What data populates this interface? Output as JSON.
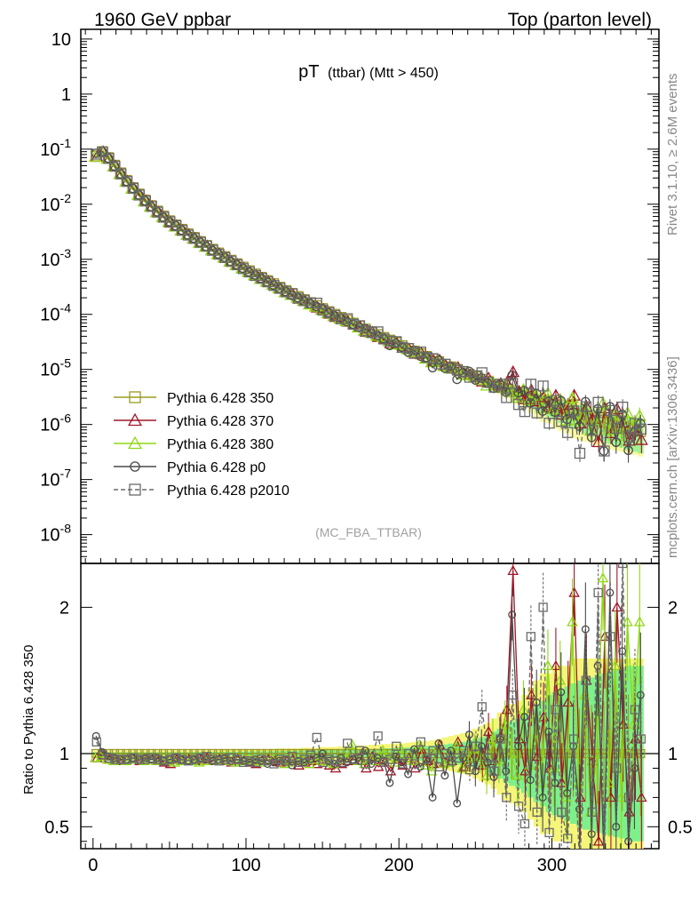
{
  "header": {
    "left": "1960 GeV ppbar",
    "right": "Top (parton level)"
  },
  "plot_title": {
    "main": "pT",
    "sub": "(ttbar) (Mtt > 450)"
  },
  "side_labels": {
    "rivet": "Rivet 3.1.10, ≥ 2.6M events",
    "mcplots": "mcplots.cern.ch [arXiv:1306.3436]"
  },
  "analysis_tag": "(MC_FBA_TTBAR)",
  "ratio_ylabel": "Ratio to Pythia 6.428 350",
  "colors": {
    "p350": "#9a9a22",
    "p370": "#a01628",
    "p380": "#8fd815",
    "p0": "#4a4a4a",
    "p2010": "#6a6a6a",
    "band_yellow": "#f5f57a",
    "band_green": "#7ef08a"
  },
  "chart_data": {
    "type": "line",
    "x_axis": {
      "range": [
        -8,
        370
      ],
      "ticks": [
        0,
        100,
        200,
        300
      ]
    },
    "main_panel": {
      "y_scale": "log",
      "y_range": [
        3e-09,
        15
      ],
      "y_ticks": [
        "10",
        "1",
        "10^-1",
        "10^-2",
        "10^-3",
        "10^-4",
        "10^-5",
        "10^-6",
        "10^-7",
        "10^-8"
      ]
    },
    "ratio_panel": {
      "y_range": [
        0.35,
        2.3
      ],
      "y_ticks": [
        "0.5",
        "1",
        "2"
      ]
    },
    "legend": [
      {
        "name": "Pythia 6.428 350",
        "marker": "square",
        "line": "solid",
        "color_key": "p350"
      },
      {
        "name": "Pythia 6.428 370",
        "marker": "triangle",
        "line": "solid",
        "color_key": "p370"
      },
      {
        "name": "Pythia 6.428 380",
        "marker": "triangle",
        "line": "solid",
        "color_key": "p380"
      },
      {
        "name": "Pythia 6.428 p0",
        "marker": "circle",
        "line": "solid",
        "color_key": "p0"
      },
      {
        "name": "Pythia 6.428 p2010",
        "marker": "square",
        "line": "dashed",
        "color_key": "p2010"
      }
    ],
    "reference": {
      "name": "Pythia 6.428 350",
      "bin_width": 4,
      "x": [
        2,
        6,
        10,
        14,
        18,
        22,
        26,
        30,
        34,
        38,
        42,
        46,
        50,
        54,
        58,
        62,
        66,
        70,
        74,
        78,
        82,
        86,
        90,
        94,
        98,
        102,
        106,
        110,
        114,
        118,
        122,
        126,
        130,
        134,
        138,
        142,
        146,
        150,
        154,
        158,
        162,
        166,
        170,
        174,
        178,
        182,
        186,
        190,
        194,
        198,
        202,
        206,
        210,
        214,
        218,
        222,
        226,
        230,
        234,
        238,
        242,
        246,
        250,
        254,
        258,
        262,
        266,
        270,
        274,
        278,
        282,
        286,
        290,
        294,
        298,
        302,
        306,
        310,
        314,
        318,
        322,
        326,
        330,
        334,
        338,
        342,
        346,
        350,
        354,
        358
      ],
      "y": [
        0.075,
        0.09,
        0.07,
        0.051,
        0.037,
        0.027,
        0.02,
        0.0153,
        0.0119,
        0.0094,
        0.0075,
        0.0061,
        0.005,
        0.0042,
        0.0035,
        0.0029,
        0.0025,
        0.0021,
        0.00178,
        0.00152,
        0.0013,
        0.00112,
        0.00096,
        0.00083,
        0.00072,
        0.00062,
        0.00054,
        0.00047,
        0.00041,
        0.00036,
        0.00031,
        0.00027,
        0.00024,
        0.00021,
        0.000185,
        0.000163,
        0.000144,
        0.000127,
        0.000112,
        0.0001,
        8.8e-05,
        7.8e-05,
        6.9e-05,
        6.1e-05,
        5.4e-05,
        4.8e-05,
        4.3e-05,
        3.8e-05,
        3.4e-05,
        3.05e-05,
        2.7e-05,
        2.4e-05,
        2.15e-05,
        1.92e-05,
        1.72e-05,
        1.54e-05,
        1.38e-05,
        1.24e-05,
        1.11e-05,
        1e-05,
        9e-06,
        8.1e-06,
        7.3e-06,
        6.6e-06,
        6e-06,
        5.4e-06,
        4.9e-06,
        4.4e-06,
        4e-06,
        3.6e-06,
        3.3e-06,
        3e-06,
        2.7e-06,
        2.5e-06,
        2.3e-06,
        2.1e-06,
        1.9e-06,
        1.7e-06,
        1.6e-06,
        1.5e-06,
        1.4e-06,
        1.3e-06,
        1.2e-06,
        1.1e-06,
        1e-06,
        9.5e-07,
        9e-07,
        8.5e-07,
        8e-07,
        7.5e-07
      ]
    },
    "bands": [
      {
        "name": "yellow",
        "color_key": "band_yellow",
        "half_width": [
          0.02,
          0.02,
          0.02,
          0.02,
          0.02,
          0.02,
          0.02,
          0.02,
          0.02,
          0.02,
          0.02,
          0.02,
          0.02,
          0.02,
          0.02,
          0.02,
          0.02,
          0.02,
          0.02,
          0.02,
          0.025,
          0.025,
          0.025,
          0.025,
          0.025,
          0.03,
          0.03,
          0.03,
          0.03,
          0.03,
          0.035,
          0.035,
          0.035,
          0.035,
          0.04,
          0.04,
          0.04,
          0.045,
          0.045,
          0.045,
          0.05,
          0.05,
          0.05,
          0.055,
          0.055,
          0.06,
          0.06,
          0.065,
          0.065,
          0.07,
          0.07,
          0.075,
          0.08,
          0.08,
          0.085,
          0.09,
          0.1,
          0.11,
          0.12,
          0.13,
          0.14,
          0.15,
          0.17,
          0.19,
          0.21,
          0.24,
          0.28,
          0.32,
          0.34,
          0.36,
          0.4,
          0.45,
          0.5,
          0.55,
          0.55,
          0.6,
          0.6,
          0.6,
          0.65,
          0.65,
          0.65,
          0.65,
          0.65,
          0.65,
          0.65,
          0.65,
          0.65,
          0.65,
          0.65,
          0.65
        ]
      },
      {
        "name": "green",
        "color_key": "band_green",
        "half_width": [
          0.01,
          0.01,
          0.01,
          0.01,
          0.01,
          0.01,
          0.01,
          0.01,
          0.01,
          0.01,
          0.01,
          0.01,
          0.01,
          0.01,
          0.01,
          0.01,
          0.012,
          0.012,
          0.012,
          0.012,
          0.013,
          0.013,
          0.013,
          0.014,
          0.014,
          0.015,
          0.015,
          0.016,
          0.016,
          0.017,
          0.018,
          0.018,
          0.019,
          0.02,
          0.021,
          0.022,
          0.022,
          0.023,
          0.024,
          0.025,
          0.026,
          0.027,
          0.028,
          0.029,
          0.03,
          0.032,
          0.033,
          0.035,
          0.036,
          0.038,
          0.04,
          0.042,
          0.045,
          0.048,
          0.05,
          0.053,
          0.058,
          0.062,
          0.068,
          0.074,
          0.08,
          0.09,
          0.1,
          0.11,
          0.13,
          0.15,
          0.17,
          0.2,
          0.22,
          0.24,
          0.27,
          0.3,
          0.33,
          0.36,
          0.4,
          0.42,
          0.44,
          0.46,
          0.48,
          0.5,
          0.52,
          0.52,
          0.54,
          0.55,
          0.56,
          0.57,
          0.58,
          0.6,
          0.6,
          0.6
        ]
      }
    ],
    "series": [
      {
        "name": "Pythia 6.428 350",
        "color_key": "p350",
        "marker": "square",
        "dash": false,
        "x_offset": 0,
        "ratio": [
          1,
          1,
          1,
          1,
          1,
          1,
          1,
          1,
          1,
          1,
          1,
          1,
          1,
          1,
          1,
          1,
          1,
          1,
          1,
          1,
          1,
          1,
          1,
          1,
          1,
          1,
          1,
          1,
          1,
          1,
          1,
          1,
          1,
          1,
          1,
          1,
          1,
          1,
          1,
          1,
          1,
          1,
          1,
          1,
          1,
          1,
          1,
          1,
          1,
          1,
          1,
          1,
          1,
          1,
          1,
          1,
          1,
          1,
          1,
          1,
          1,
          1,
          1,
          1,
          1,
          1,
          1,
          1,
          1,
          1,
          1,
          1,
          1,
          1,
          1,
          1,
          1,
          1,
          1,
          1,
          1,
          1,
          1,
          1,
          1,
          1,
          1,
          1,
          1,
          1
        ]
      },
      {
        "name": "Pythia 6.428 370",
        "color_key": "p370",
        "marker": "triangle",
        "dash": false,
        "x_offset": 0.6,
        "ratio": [
          0.97,
          0.99,
          0.96,
          0.96,
          0.95,
          0.96,
          0.96,
          0.95,
          0.96,
          0.96,
          0.95,
          0.94,
          0.93,
          0.96,
          0.95,
          0.96,
          0.95,
          0.96,
          0.97,
          0.95,
          0.96,
          0.95,
          0.94,
          0.96,
          0.95,
          0.94,
          0.93,
          0.95,
          0.96,
          0.95,
          0.94,
          0.95,
          0.96,
          0.92,
          0.94,
          0.95,
          0.93,
          0.96,
          0.92,
          0.9,
          0.93,
          0.95,
          0.96,
          0.97,
          0.9,
          0.98,
          0.91,
          0.94,
          0.88,
          0.96,
          0.92,
          0.97,
          0.9,
          1.03,
          0.95,
          0.93,
          1.06,
          0.94,
          0.95,
          1.08,
          0.91,
          0.97,
          1.0,
          0.92,
          1.15,
          0.95,
          1.12,
          1.3,
          2.25,
          1.1,
          0.88,
          1.4,
          0.98,
          1.25,
          0.9,
          1.6,
          0.8,
          1.35,
          2.1,
          0.7,
          1.5,
          0.95,
          0.4,
          1.8,
          0.7,
          2.0,
          1.2,
          0.6,
          1.1,
          0.7
        ]
      },
      {
        "name": "Pythia 6.428 380",
        "color_key": "p380",
        "marker": "triangle",
        "dash": false,
        "x_offset": -0.6,
        "ratio": [
          0.97,
          0.98,
          0.96,
          0.95,
          0.96,
          0.95,
          0.96,
          0.96,
          0.95,
          0.96,
          0.95,
          0.96,
          0.95,
          0.94,
          0.95,
          0.96,
          0.95,
          0.94,
          0.95,
          0.96,
          0.95,
          0.96,
          0.95,
          0.94,
          0.95,
          0.96,
          0.95,
          0.94,
          0.95,
          0.96,
          0.96,
          0.93,
          0.94,
          0.96,
          0.95,
          0.93,
          0.96,
          0.95,
          0.94,
          0.93,
          0.96,
          0.97,
          1.06,
          0.95,
          0.93,
          0.97,
          0.95,
          1.02,
          0.96,
          0.94,
          1.03,
          0.97,
          0.95,
          1.06,
          0.92,
          0.88,
          1.04,
          0.93,
          0.94,
          1.05,
          0.9,
          0.97,
          1.03,
          0.98,
          0.85,
          1.1,
          0.95,
          1.2,
          1.0,
          0.85,
          1.3,
          0.92,
          1.25,
          0.8,
          1.6,
          0.9,
          1.5,
          0.7,
          1.9,
          0.8,
          1.4,
          0.6,
          1.0,
          2.2,
          0.8,
          1.6,
          0.7,
          1.9,
          1.2,
          1.9
        ]
      },
      {
        "name": "Pythia 6.428 p0",
        "color_key": "p0",
        "marker": "circle",
        "dash": false,
        "x_offset": 0,
        "ratio": [
          1.12,
          1.01,
          0.98,
          0.97,
          0.96,
          0.96,
          0.97,
          0.96,
          0.97,
          0.96,
          0.97,
          0.95,
          0.96,
          0.97,
          0.96,
          0.95,
          0.96,
          0.97,
          0.96,
          0.95,
          0.96,
          0.97,
          0.95,
          0.96,
          0.95,
          0.94,
          0.96,
          0.95,
          0.93,
          0.94,
          0.95,
          0.96,
          0.92,
          0.95,
          0.94,
          0.96,
          0.97,
          1.0,
          0.95,
          0.93,
          0.97,
          0.94,
          0.96,
          0.95,
          1.02,
          0.93,
          0.97,
          0.95,
          0.8,
          0.98,
          0.94,
          0.86,
          1.03,
          0.91,
          0.96,
          0.7,
          1.07,
          0.85,
          1.02,
          0.66,
          0.97,
          1.13,
          0.88,
          1.05,
          0.94,
          0.84,
          1.1,
          0.88,
          1.95,
          1.05,
          1.25,
          0.82,
          1.35,
          0.7,
          1.15,
          0.8,
          1.42,
          0.73,
          1.05,
          0.62,
          1.85,
          0.45,
          1.6,
          0.3,
          2.1,
          0.5,
          1.7,
          0.4,
          0.9,
          1.4
        ]
      },
      {
        "name": "Pythia 6.428 p2010",
        "color_key": "p2010",
        "marker": "square",
        "dash": true,
        "x_offset": 0.3,
        "ratio": [
          1.08,
          0.99,
          0.97,
          0.96,
          0.96,
          0.96,
          0.97,
          0.96,
          0.96,
          0.97,
          0.96,
          0.95,
          0.96,
          0.97,
          0.96,
          0.95,
          0.96,
          0.97,
          0.98,
          0.96,
          0.95,
          0.96,
          0.97,
          0.96,
          0.94,
          0.95,
          0.94,
          0.96,
          0.95,
          0.93,
          0.96,
          0.95,
          0.98,
          0.94,
          0.96,
          0.99,
          1.11,
          0.94,
          0.96,
          0.95,
          0.94,
          1.07,
          0.96,
          1.02,
          0.93,
          0.97,
          1.12,
          0.94,
          0.96,
          1.05,
          0.93,
          1.0,
          0.93,
          1.08,
          0.96,
          1.02,
          0.91,
          1.0,
          0.95,
          0.97,
          1.02,
          0.89,
          1.05,
          1.32,
          0.97,
          0.88,
          1.1,
          0.7,
          1.4,
          0.64,
          0.52,
          1.8,
          0.6,
          2.0,
          0.46,
          1.3,
          0.6,
          0.42,
          1.1,
          0.2,
          1.5,
          0.6,
          2.1,
          0.3,
          1.8,
          0.9,
          2.3,
          0.7,
          1.3,
          1.1
        ]
      }
    ]
  }
}
